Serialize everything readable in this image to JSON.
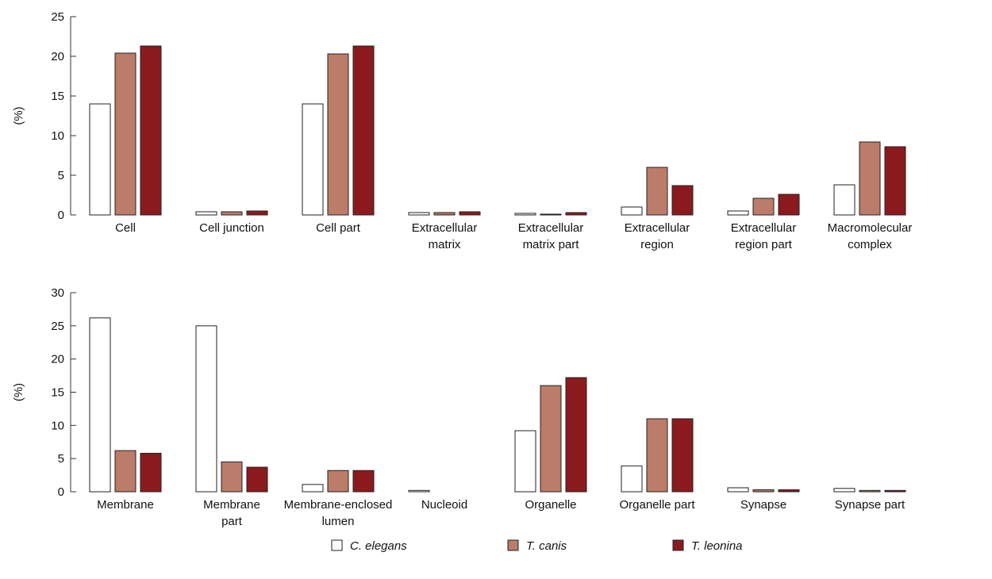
{
  "legend": [
    {
      "name": "C. elegans",
      "color": "#ffffff"
    },
    {
      "name": "T. canis",
      "color": "#bb7c6a"
    },
    {
      "name": "T. leonina",
      "color": "#8b1a1f"
    }
  ],
  "colors": {
    "outline": "#222222",
    "axis": "#333333"
  },
  "chart_data": [
    {
      "type": "bar",
      "ylabel": "(%)",
      "ylim": [
        0,
        25
      ],
      "yticks": [
        0,
        5,
        10,
        15,
        20,
        25
      ],
      "categories": [
        [
          "Cell"
        ],
        [
          "Cell junction"
        ],
        [
          "Cell part"
        ],
        [
          "Extracellular",
          "matrix"
        ],
        [
          "Extracellular",
          "matrix part"
        ],
        [
          "Extracellular",
          "region"
        ],
        [
          "Extracellular",
          "region part"
        ],
        [
          "Macromolecular",
          "complex"
        ]
      ],
      "series": [
        {
          "name": "C. elegans",
          "values": [
            14.0,
            0.4,
            14.0,
            0.3,
            0.2,
            1.0,
            0.5,
            3.8
          ]
        },
        {
          "name": "T. canis",
          "values": [
            20.4,
            0.4,
            20.3,
            0.3,
            0.1,
            6.0,
            2.1,
            9.2
          ]
        },
        {
          "name": "T. leonina",
          "values": [
            21.3,
            0.5,
            21.3,
            0.4,
            0.3,
            3.7,
            2.6,
            8.6
          ]
        }
      ]
    },
    {
      "type": "bar",
      "ylabel": "(%)",
      "ylim": [
        0,
        30
      ],
      "yticks": [
        0,
        5,
        10,
        15,
        20,
        25,
        30
      ],
      "categories": [
        [
          "Membrane"
        ],
        [
          "Membrane",
          "part"
        ],
        [
          "Membrane-enclosed",
          "lumen"
        ],
        [
          "Nucleoid"
        ],
        [
          "Organelle"
        ],
        [
          "Organelle part"
        ],
        [
          "Synapse"
        ],
        [
          "Synapse part"
        ]
      ],
      "series": [
        {
          "name": "C. elegans",
          "values": [
            26.2,
            25.0,
            1.1,
            0.2,
            9.2,
            3.9,
            0.6,
            0.5
          ]
        },
        {
          "name": "T. canis",
          "values": [
            6.2,
            4.5,
            3.2,
            0.0,
            16.0,
            11.0,
            0.3,
            0.2
          ]
        },
        {
          "name": "T. leonina",
          "values": [
            5.8,
            3.7,
            3.2,
            0.0,
            17.2,
            11.0,
            0.3,
            0.2
          ]
        }
      ]
    }
  ]
}
